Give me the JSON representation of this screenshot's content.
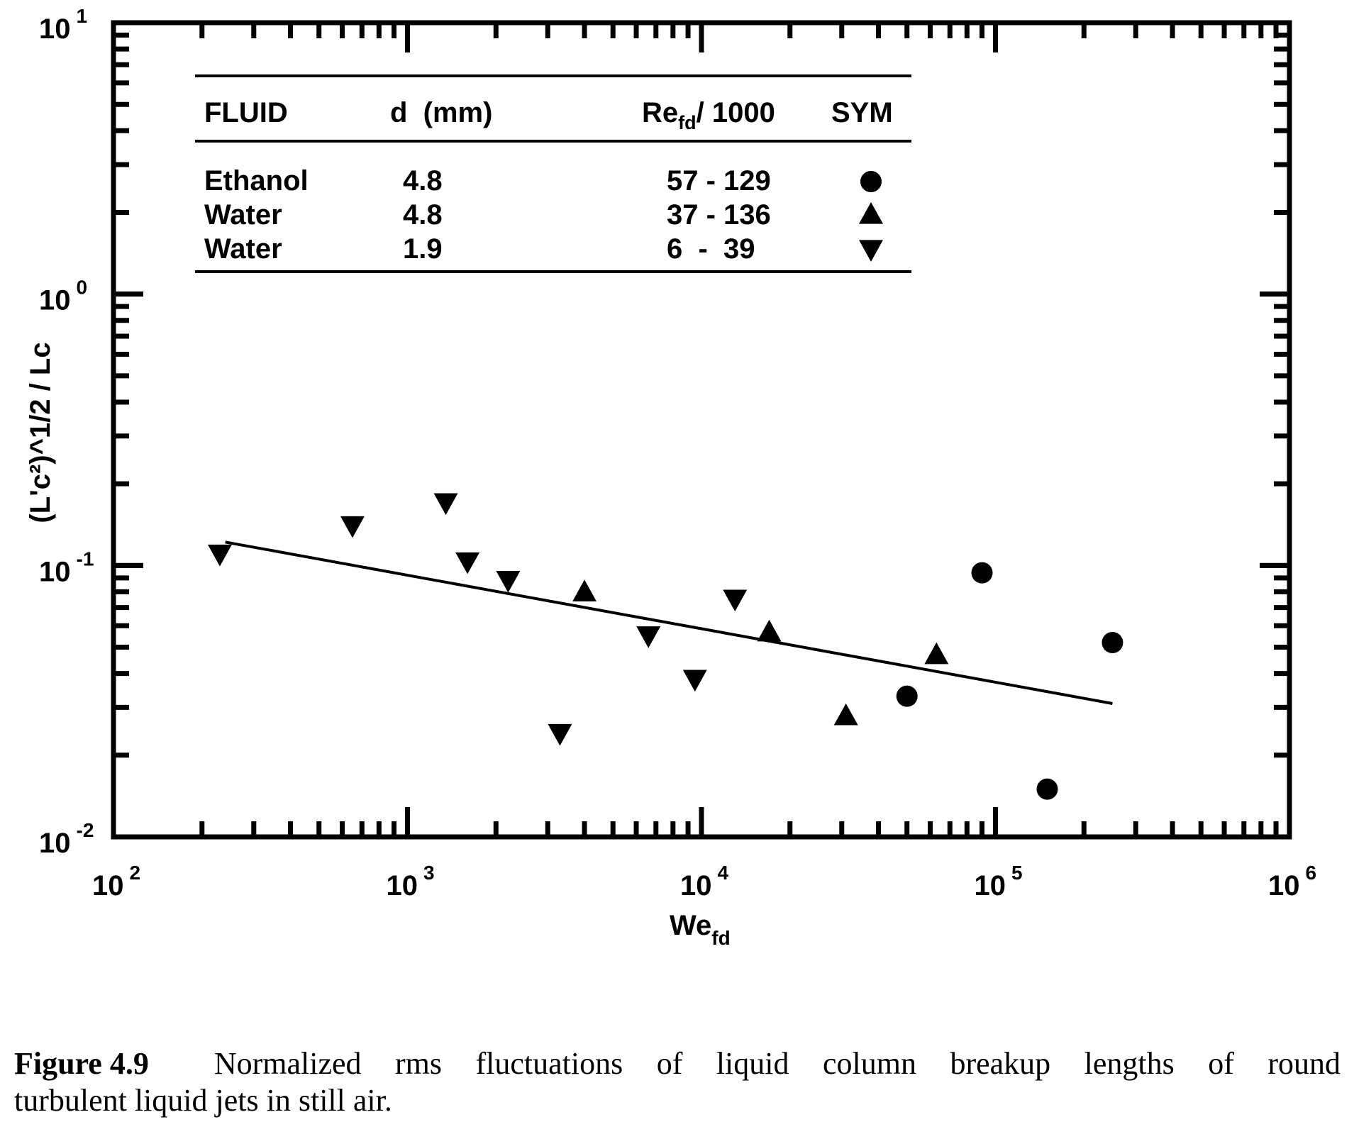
{
  "chart_data": {
    "type": "scatter",
    "xlabel": "We",
    "xlabel_sub": "fd",
    "ylabel": "(L'c²)^1/2 / Lc",
    "x_scale": "log",
    "y_scale": "log",
    "xlim": [
      100,
      1000000
    ],
    "ylim": [
      0.01,
      10
    ],
    "x_ticks": [
      {
        "base": "10",
        "exp": "2"
      },
      {
        "base": "10",
        "exp": "3"
      },
      {
        "base": "10",
        "exp": "4"
      },
      {
        "base": "10",
        "exp": "5"
      },
      {
        "base": "10",
        "exp": "6"
      }
    ],
    "y_ticks": [
      {
        "base": "10",
        "exp": "-2"
      },
      {
        "base": "10",
        "exp": "-1"
      },
      {
        "base": "10",
        "exp": "0"
      },
      {
        "base": "10",
        "exp": "1"
      }
    ],
    "grid": false,
    "legend": {
      "placement": "top-left",
      "headers": {
        "fluid": "FLUID",
        "d": "d  (mm)",
        "re_main": "Re",
        "re_sub": "fd",
        "re_rest": "/ 1000",
        "sym": "SYM"
      },
      "rows": [
        {
          "fluid": "Ethanol",
          "d": "4.8",
          "re": "57 - 129",
          "symbol": "circle"
        },
        {
          "fluid": "Water",
          "d": "4.8",
          "re": "37 - 136",
          "symbol": "triangle-up"
        },
        {
          "fluid": "Water",
          "d": "1.9",
          "re": "6  -  39",
          "symbol": "triangle-down"
        }
      ]
    },
    "series": [
      {
        "symbol": "circle",
        "x": [
          50000,
          90000,
          150000,
          250000
        ],
        "y": [
          0.033,
          0.094,
          0.015,
          0.052
        ]
      },
      {
        "symbol": "triangle-up",
        "x": [
          4000,
          17000,
          31000,
          63000
        ],
        "y": [
          0.08,
          0.057,
          0.028,
          0.047
        ]
      },
      {
        "symbol": "triangle-down",
        "x": [
          230,
          650,
          1350,
          1600,
          2200,
          3300,
          6600,
          9500,
          13000
        ],
        "y": [
          0.11,
          0.14,
          0.17,
          0.103,
          0.088,
          0.024,
          0.055,
          0.038,
          0.075
        ]
      }
    ],
    "fit_line": {
      "x": [
        240,
        250000
      ],
      "y": [
        0.122,
        0.031
      ]
    }
  },
  "caption": {
    "label": "Figure 4.9",
    "line1": "Normalized rms fluctuations of liquid column breakup lengths of round",
    "line2": "turbulent liquid jets in still air."
  }
}
